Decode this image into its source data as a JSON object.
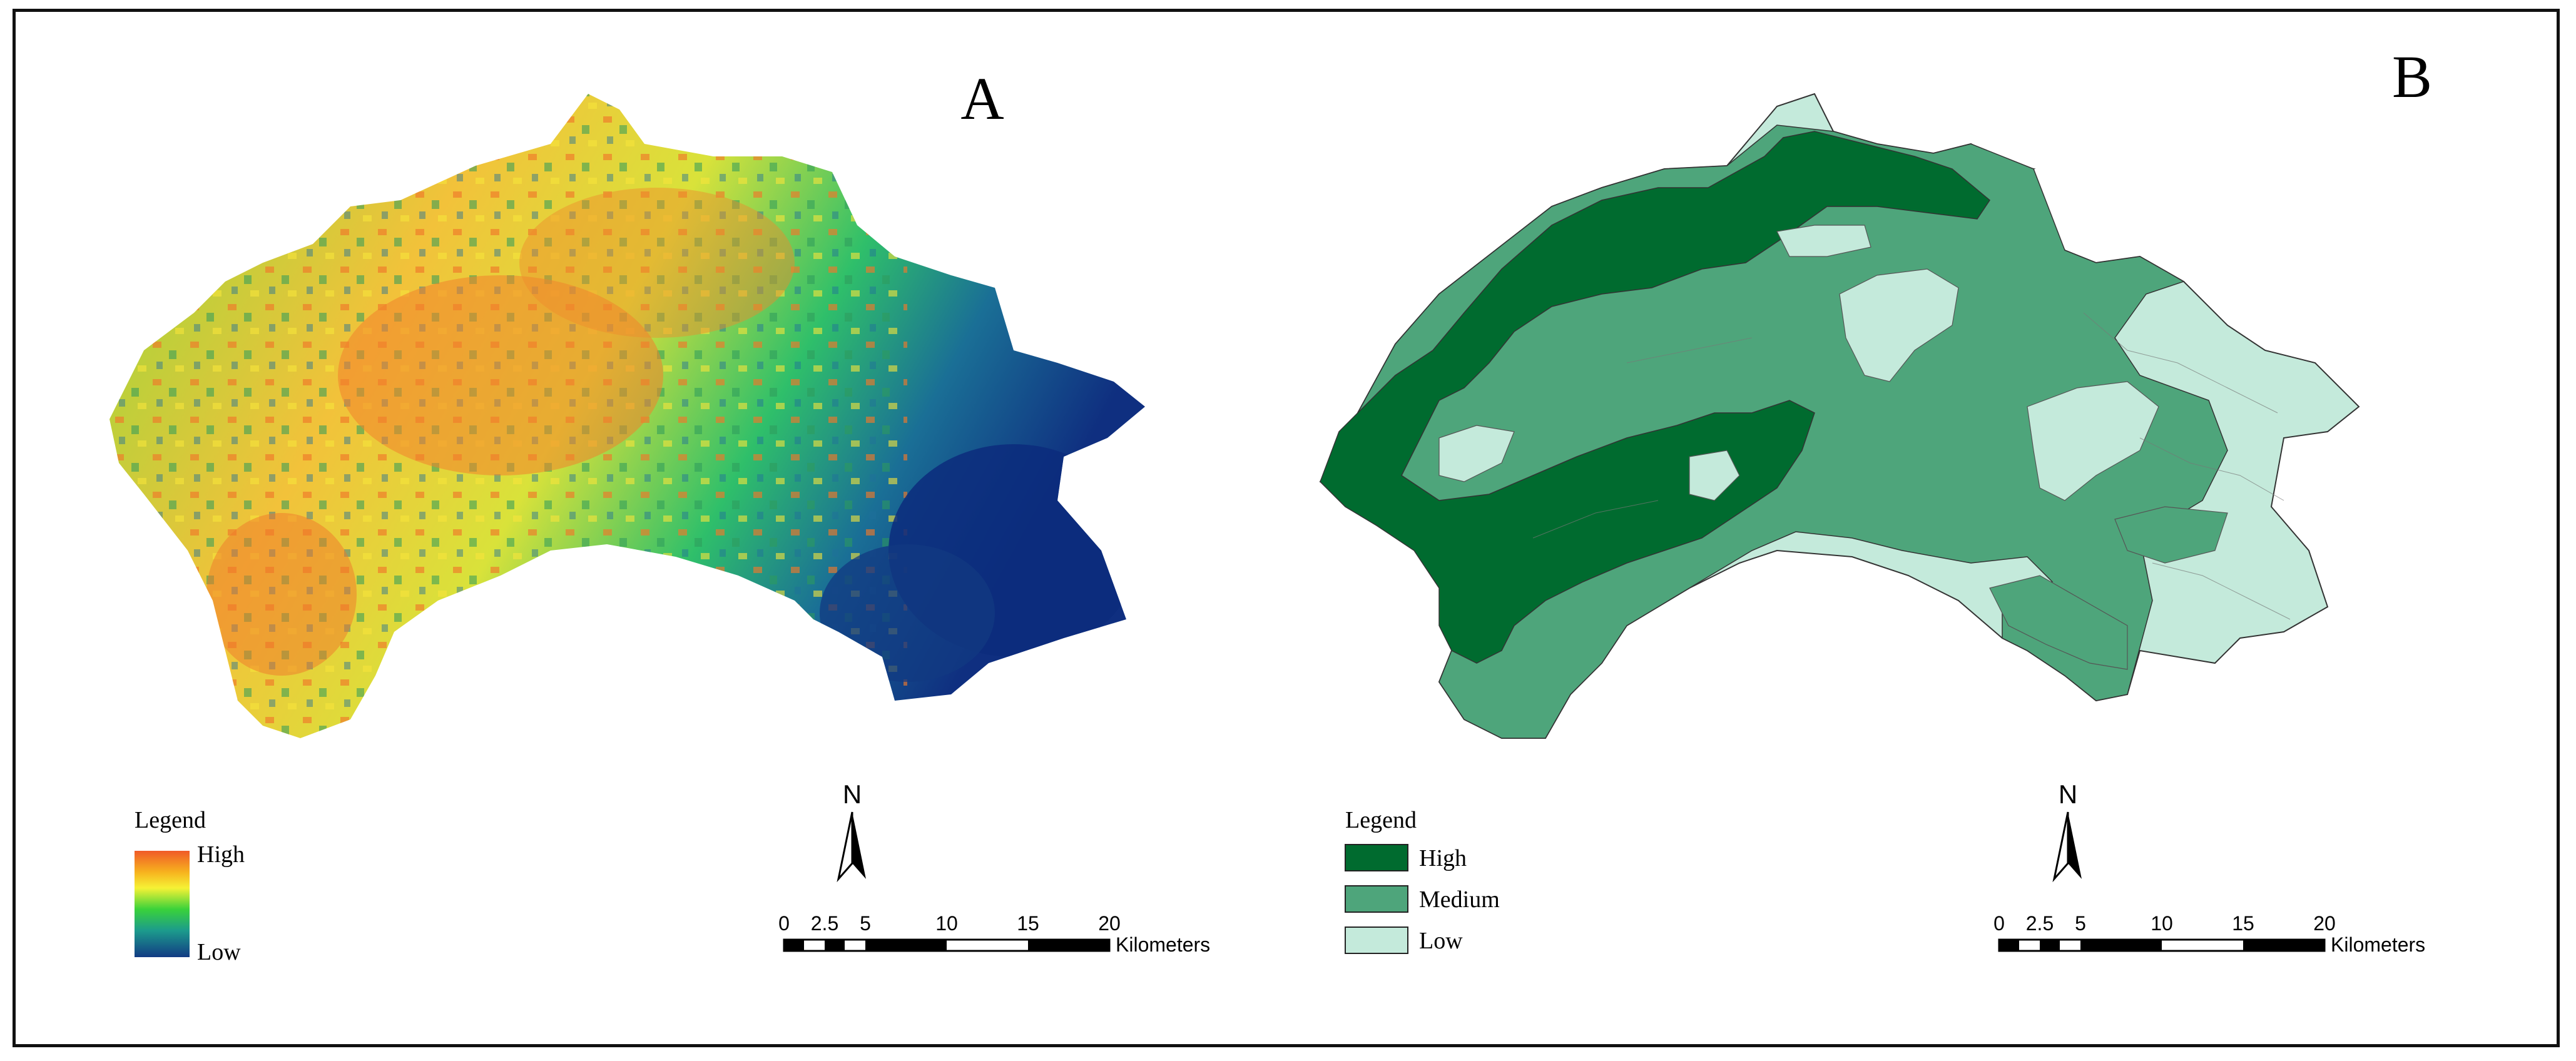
{
  "panels": [
    {
      "label": "A",
      "legend": {
        "title": "Legend",
        "high_label": "High",
        "low_label": "Low",
        "ramp_colors": [
          "#f05a28",
          "#f7b21e",
          "#f6f235",
          "#3ad23a",
          "#1c9b8c",
          "#123b84"
        ]
      },
      "north_label": "N",
      "scale": {
        "ticks": [
          "0",
          "2.5",
          "5",
          "10",
          "15",
          "20"
        ],
        "unit": "Kilometers"
      }
    },
    {
      "label": "B",
      "legend": {
        "title": "Legend",
        "classes": [
          {
            "label": "High",
            "color": "#006b2f"
          },
          {
            "label": "Medium",
            "color": "#4ea57b"
          },
          {
            "label": "Low",
            "color": "#c4eadb"
          }
        ]
      },
      "north_label": "N",
      "scale": {
        "ticks": [
          "0",
          "2.5",
          "5",
          "10",
          "15",
          "20"
        ],
        "unit": "Kilometers"
      }
    }
  ]
}
